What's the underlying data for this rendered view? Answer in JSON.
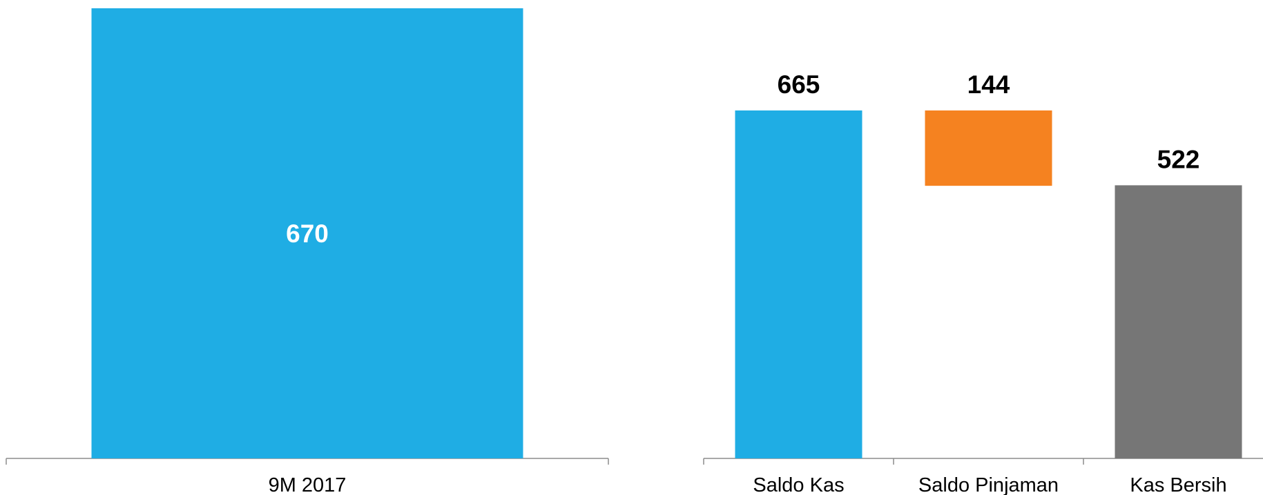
{
  "chart_data": [
    {
      "type": "bar",
      "categories": [
        "9M 2017"
      ],
      "values": [
        670
      ],
      "data_labels": [
        "670"
      ],
      "colors": [
        "#1fade4"
      ],
      "label_color": "#ffffff",
      "label_position": "inside",
      "ylim": [
        0,
        670
      ]
    },
    {
      "type": "waterfall",
      "categories": [
        "Saldo Kas",
        "Saldo Pinjaman",
        "Kas Bersih"
      ],
      "values": [
        665,
        144,
        522
      ],
      "data_labels": [
        "665",
        "144",
        "522"
      ],
      "colors": [
        "#1fade4",
        "#f58220",
        "#767676"
      ],
      "label_color": "#000000",
      "label_position": "above",
      "ylim": [
        0,
        665
      ]
    }
  ],
  "colors": {
    "axis": "#8c8c8c",
    "background": "#ffffff"
  }
}
